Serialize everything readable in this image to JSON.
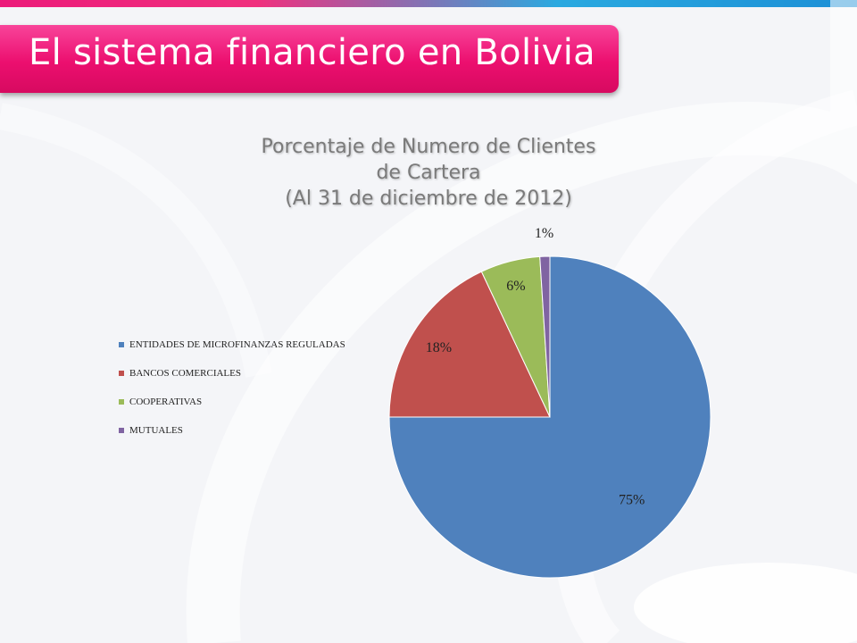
{
  "slide": {
    "title": "El sistema financiero en Bolivia"
  },
  "colors": {
    "accent": "#ec1a7a",
    "banner": "#ec0f6f"
  },
  "chart_data": {
    "type": "pie",
    "title_lines": [
      "Porcentaje de Numero de Clientes",
      "de Cartera",
      "(Al 31 de diciembre de 2012)"
    ],
    "legend_position": "left",
    "categories": [
      "ENTIDADES DE MICROFINANZAS REGULADAS",
      "BANCOS COMERCIALES",
      "COOPERATIVAS",
      "MUTUALES"
    ],
    "values": [
      75,
      18,
      6,
      1
    ],
    "labels": [
      "75%",
      "18%",
      "6%",
      "1%"
    ],
    "colors": [
      "#4f81bd",
      "#c0504d",
      "#9bbb59",
      "#8064a2"
    ]
  }
}
